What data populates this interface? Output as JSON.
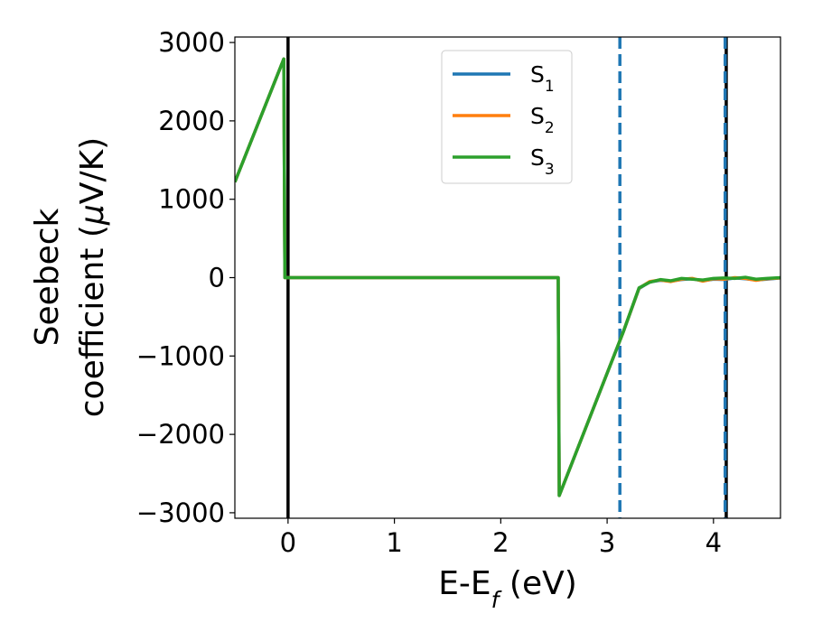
{
  "chart_data": {
    "type": "line",
    "xlabel": {
      "main": "E-E",
      "sub": "f",
      "unit": " (eV)"
    },
    "ylabel": {
      "line1": "Seebeck",
      "line2_pre": "coefficient  (",
      "mu": "μ",
      "line2_post": "V/K)"
    },
    "xlim": [
      -0.5,
      4.63
    ],
    "ylim": [
      -3070,
      3070
    ],
    "xticks": [
      0,
      1,
      2,
      3,
      4
    ],
    "xtick_labels": [
      "0",
      "1",
      "2",
      "3",
      "4"
    ],
    "yticks": [
      3000,
      2000,
      1000,
      0,
      -1000,
      -2000,
      -3000
    ],
    "ytick_labels": [
      "3000",
      "2000",
      "1000",
      "0",
      "−1000",
      "−2000",
      "−3000"
    ],
    "grid": false,
    "legend_position": "upper-center",
    "series": [
      {
        "name": "S",
        "sub": "1",
        "color": "#1f77b4",
        "x": [
          -0.5,
          -0.04,
          -0.03,
          2.53,
          2.54,
          2.55,
          3.15,
          3.3,
          3.4,
          3.5,
          3.6,
          3.7,
          3.8,
          3.9,
          4.0,
          4.1,
          4.2,
          4.3,
          4.4,
          4.5,
          4.63
        ],
        "y": [
          1220,
          2790,
          0,
          0,
          0,
          -2780,
          -700,
          -140,
          -55,
          -35,
          -45,
          -25,
          -15,
          -40,
          -20,
          -25,
          -5,
          -15,
          -30,
          -20,
          -5
        ]
      },
      {
        "name": "S",
        "sub": "2",
        "color": "#ff7f0e",
        "x": [
          -0.5,
          -0.04,
          -0.03,
          2.53,
          2.54,
          2.55,
          3.15,
          3.3,
          3.4,
          3.5,
          3.6,
          3.7,
          3.8,
          3.9,
          4.0,
          4.1,
          4.2,
          4.3,
          4.4,
          4.5,
          4.63
        ],
        "y": [
          1220,
          2790,
          0,
          0,
          0,
          -2780,
          -700,
          -135,
          -50,
          -30,
          -50,
          -20,
          -10,
          -45,
          -15,
          -20,
          0,
          -10,
          -35,
          -15,
          -5
        ]
      },
      {
        "name": "S",
        "sub": "3",
        "color": "#2ca02c",
        "x": [
          -0.5,
          -0.04,
          -0.03,
          2.53,
          2.54,
          2.55,
          3.15,
          3.3,
          3.4,
          3.5,
          3.6,
          3.7,
          3.8,
          3.9,
          4.0,
          4.1,
          4.2,
          4.3,
          4.4,
          4.5,
          4.63
        ],
        "y": [
          1220,
          2790,
          0,
          0,
          0,
          -2780,
          -700,
          -130,
          -60,
          -25,
          -40,
          -10,
          -20,
          -30,
          -10,
          -5,
          -10,
          5,
          -20,
          -10,
          0
        ]
      }
    ],
    "vlines": [
      {
        "x": 0.0,
        "style": "solid",
        "color": "#000000"
      },
      {
        "x": 4.12,
        "style": "solid",
        "color": "#000000"
      },
      {
        "x": 3.12,
        "style": "dashed",
        "color": "#1f77b4"
      },
      {
        "x": 4.11,
        "style": "dashed",
        "color": "#1f77b4"
      }
    ]
  }
}
